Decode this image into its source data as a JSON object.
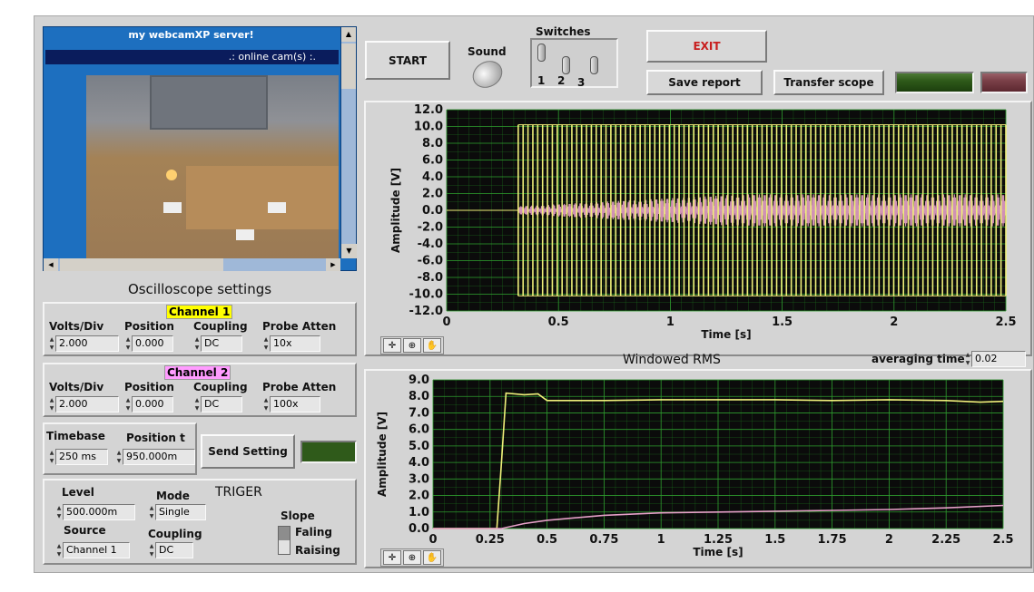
{
  "webcam": {
    "title": "my webcamXP server!",
    "status": ".: online cam(s) :."
  },
  "buttons": {
    "start": "START",
    "exit": "EXIT",
    "save_report": "Save report",
    "transfer_scope": "Transfer scope",
    "send_setting": "Send Setting"
  },
  "sound_label": "Sound",
  "switches": {
    "title": "Switches",
    "labels": [
      "1",
      "2",
      "3"
    ]
  },
  "osc_settings_title": "Oscilloscope settings",
  "channel1": {
    "title": "Channel 1",
    "headers": [
      "Volts/Div",
      "Position",
      "Coupling",
      "Probe Atten"
    ],
    "values": [
      "2.000",
      "0.000",
      "DC",
      "10x"
    ]
  },
  "channel2": {
    "title": "Channel 2",
    "headers": [
      "Volts/Div",
      "Position",
      "Coupling",
      "Probe Atten"
    ],
    "values": [
      "2.000",
      "0.000",
      "DC",
      "100x"
    ]
  },
  "timebase": {
    "label": "Timebase",
    "value": "250 ms",
    "position_label": "Position t",
    "position_value": "950.000m"
  },
  "trigger": {
    "title": "TRIGER",
    "level_label": "Level",
    "level_value": "500.000m",
    "mode_label": "Mode",
    "mode_value": "Single",
    "source_label": "Source",
    "source_value": "Channel 1",
    "coupling_label": "Coupling",
    "coupling_value": "DC",
    "slope_label": "Slope",
    "slope_options": [
      "Faling",
      "Raising"
    ]
  },
  "averaging": {
    "label": "averaging time",
    "value": "0.02"
  },
  "colors": {
    "plot_bg": "#0b0b0b",
    "grid": "#1f7a1f",
    "trace1": "#f0f07a",
    "trace2": "#e6a0c8",
    "led_green": "#2f5a1a",
    "led_red": "#7a4048",
    "channel1_tag": "#ffff00",
    "channel2_tag": "#ff9cff"
  },
  "chart_data": [
    {
      "type": "line",
      "title": "",
      "xlabel": "Time [s]",
      "ylabel": "Amplitude [V]",
      "xlim": [
        0,
        2.5
      ],
      "ylim": [
        -12,
        12
      ],
      "xticks": [
        "0",
        "0.5",
        "1",
        "1.5",
        "2",
        "2.5"
      ],
      "yticks": [
        "12.0",
        "10.0",
        "8.0",
        "6.0",
        "4.0",
        "2.0",
        "0.0",
        "-2.0",
        "-4.0",
        "-6.0",
        "-8.0",
        "-10.0",
        "-12.0"
      ],
      "grid": true,
      "series": [
        {
          "color": "#f0f07a",
          "start": 0.32,
          "amplitude": 10.2,
          "cycles": 100
        },
        {
          "color": "#e6a0c8",
          "start": 0.32,
          "amplitude_end": 1.9,
          "cycles": 100
        }
      ]
    },
    {
      "type": "line",
      "title": "Windowed RMS",
      "xlabel": "Time [s]",
      "ylabel": "Amplitude [V]",
      "xlim": [
        0,
        2.5
      ],
      "ylim": [
        0,
        9
      ],
      "xticks": [
        "0",
        "0.25",
        "0.5",
        "0.75",
        "1",
        "1.25",
        "1.5",
        "1.75",
        "2",
        "2.25",
        "2.5"
      ],
      "yticks": [
        "9.0",
        "8.0",
        "7.0",
        "6.0",
        "5.0",
        "4.0",
        "3.0",
        "2.0",
        "1.0",
        "0.0"
      ],
      "grid": true,
      "series": [
        {
          "color": "#f0f07a",
          "x": [
            0,
            0.28,
            0.3,
            0.32,
            0.4,
            0.46,
            0.5,
            0.75,
            1.0,
            1.25,
            1.5,
            1.75,
            2.0,
            2.25,
            2.4,
            2.5
          ],
          "y": [
            0,
            0,
            4.0,
            8.2,
            8.1,
            8.15,
            7.75,
            7.75,
            7.8,
            7.8,
            7.8,
            7.75,
            7.8,
            7.75,
            7.65,
            7.7
          ]
        },
        {
          "color": "#e6a0c8",
          "x": [
            0,
            0.3,
            0.4,
            0.5,
            0.75,
            1.0,
            1.25,
            1.5,
            1.75,
            2.0,
            2.25,
            2.5
          ],
          "y": [
            0,
            0,
            0.3,
            0.5,
            0.8,
            0.95,
            1.0,
            1.05,
            1.1,
            1.15,
            1.25,
            1.4
          ]
        }
      ]
    }
  ]
}
